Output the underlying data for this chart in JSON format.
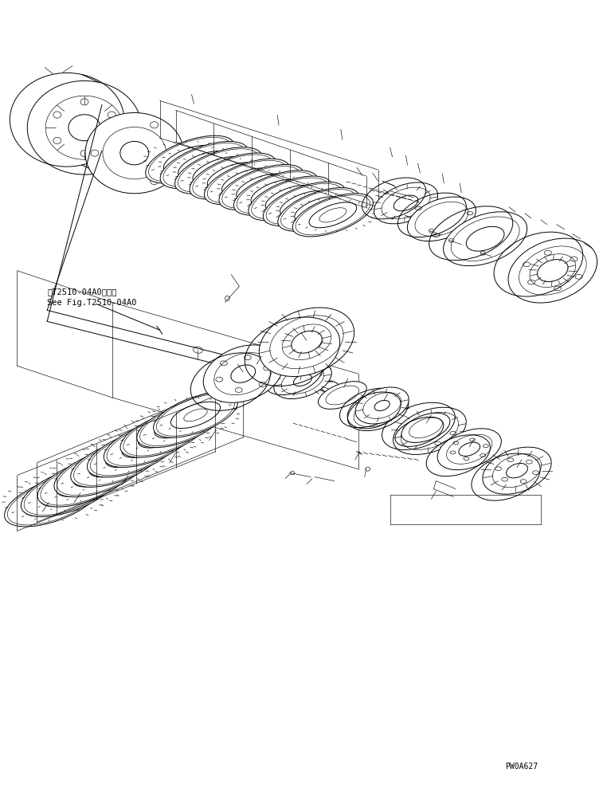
{
  "figure_width": 7.57,
  "figure_height": 9.99,
  "dpi": 100,
  "background_color": "#ffffff",
  "line_color": "#000000",
  "lw": 0.7,
  "tlw": 0.45,
  "label_code": "PW0A627",
  "reference_text_line1": "第T2510-04A0図参照",
  "reference_text_line2": "See Fig.T2510-04A0",
  "ref_fontsize": 7.5,
  "code_fontsize": 7
}
